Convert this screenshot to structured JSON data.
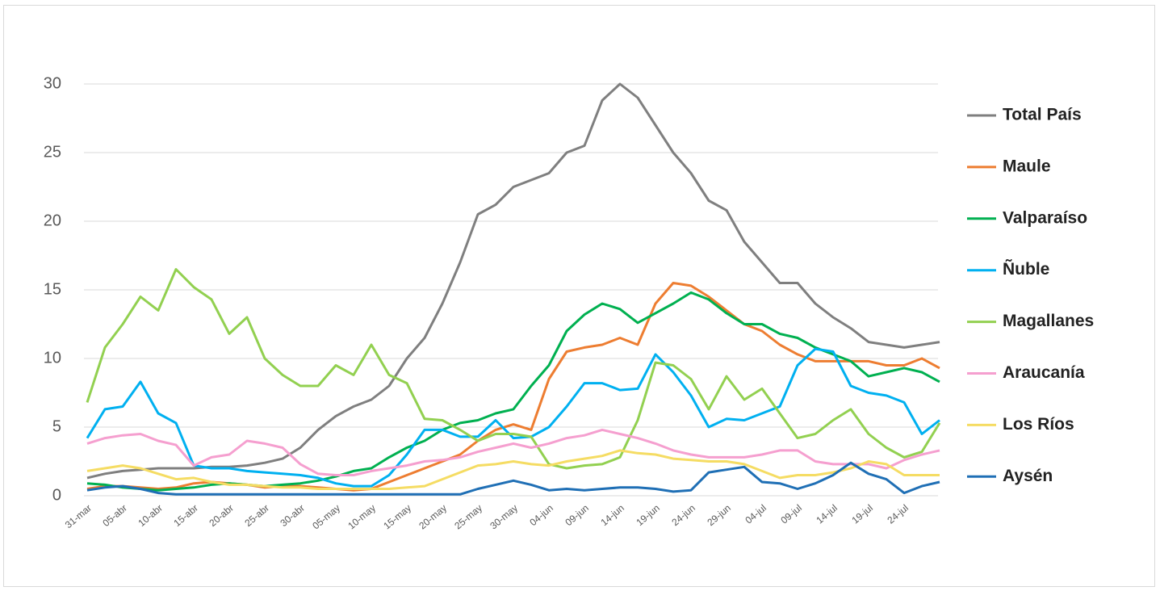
{
  "chart_data": {
    "type": "line",
    "categories": [
      "31-mar",
      null,
      "05-abr",
      null,
      "10-abr",
      null,
      "15-abr",
      null,
      "20-abr",
      null,
      "25-abr",
      null,
      "30-abr",
      null,
      "05-may",
      null,
      "10-may",
      null,
      "15-may",
      null,
      "20-may",
      null,
      "25-may",
      null,
      "30-may",
      null,
      "04-jun",
      null,
      "09-jun",
      null,
      "14-jun",
      null,
      "19-jun",
      null,
      "24-jun",
      null,
      "29-jun",
      null,
      "04-jul",
      null,
      "09-jul",
      null,
      "14-jul",
      null,
      "19-jul",
      null,
      "24-jul",
      null,
      null
    ],
    "ylim": [
      0,
      30
    ],
    "yticks": [
      0,
      5,
      10,
      15,
      20,
      25,
      30
    ],
    "grid": true,
    "legend": "right",
    "series": [
      {
        "name": "Total País",
        "color": "#7f7f7f",
        "values": [
          1.3,
          1.6,
          1.8,
          1.9,
          2.0,
          2.0,
          2.0,
          2.1,
          2.1,
          2.2,
          2.4,
          2.7,
          3.5,
          4.8,
          5.8,
          6.5,
          7.0,
          8.0,
          10.0,
          11.5,
          14.0,
          17.0,
          20.5,
          21.2,
          22.5,
          23.0,
          23.5,
          25.0,
          25.5,
          28.8,
          30.0,
          29.0,
          27.0,
          25.0,
          23.5,
          21.5,
          20.8,
          18.5,
          17.0,
          15.5,
          15.5,
          14.0,
          13.0,
          12.2,
          11.2,
          11.0,
          10.8,
          11.0,
          11.2
        ]
      },
      {
        "name": "Maule",
        "color": "#ed7d31",
        "values": [
          0.5,
          0.7,
          0.7,
          0.6,
          0.5,
          0.6,
          0.9,
          1.0,
          0.9,
          0.8,
          0.6,
          0.7,
          0.7,
          0.6,
          0.5,
          0.4,
          0.5,
          1.0,
          1.5,
          2.0,
          2.5,
          3.0,
          4.0,
          4.8,
          5.2,
          4.8,
          8.5,
          10.5,
          10.8,
          11.0,
          11.5,
          11.0,
          14.0,
          15.5,
          15.3,
          14.5,
          13.5,
          12.5,
          12.0,
          11.0,
          10.3,
          9.8,
          9.8,
          9.8,
          9.8,
          9.5,
          9.5,
          10.0,
          9.3
        ]
      },
      {
        "name": "Valparaíso",
        "color": "#00b050",
        "values": [
          0.9,
          0.8,
          0.6,
          0.5,
          0.4,
          0.5,
          0.6,
          0.8,
          0.9,
          0.8,
          0.7,
          0.8,
          0.9,
          1.1,
          1.4,
          1.8,
          2.0,
          2.8,
          3.5,
          4.0,
          4.8,
          5.3,
          5.5,
          6.0,
          6.3,
          8.0,
          9.5,
          12.0,
          13.2,
          14.0,
          13.6,
          12.6,
          13.3,
          14.0,
          14.8,
          14.3,
          13.3,
          12.5,
          12.5,
          11.8,
          11.5,
          10.8,
          10.3,
          9.8,
          8.7,
          9.0,
          9.3,
          9.0,
          8.3
        ]
      },
      {
        "name": "Ñuble",
        "color": "#00b0f0",
        "values": [
          4.2,
          6.3,
          6.5,
          8.3,
          6.0,
          5.3,
          2.2,
          2.0,
          2.0,
          1.8,
          1.7,
          1.6,
          1.5,
          1.3,
          0.9,
          0.7,
          0.7,
          1.5,
          3.0,
          4.8,
          4.8,
          4.3,
          4.3,
          5.5,
          4.2,
          4.3,
          5.0,
          6.5,
          8.2,
          8.2,
          7.7,
          7.8,
          10.3,
          9.0,
          7.3,
          5.0,
          5.6,
          5.5,
          6.0,
          6.5,
          9.5,
          10.7,
          10.5,
          8.0,
          7.5,
          7.3,
          6.8,
          4.5,
          5.5
        ]
      },
      {
        "name": "Magallanes",
        "color": "#92d050",
        "values": [
          6.8,
          10.8,
          12.5,
          14.5,
          13.5,
          16.5,
          15.2,
          14.3,
          11.8,
          13.0,
          10.0,
          8.8,
          8.0,
          8.0,
          9.5,
          8.8,
          11.0,
          8.8,
          8.2,
          5.6,
          5.5,
          4.8,
          4.0,
          4.5,
          4.5,
          4.3,
          2.3,
          2.0,
          2.2,
          2.3,
          2.8,
          5.5,
          9.7,
          9.5,
          8.5,
          6.3,
          8.7,
          7.0,
          7.8,
          6.0,
          4.2,
          4.5,
          5.5,
          6.3,
          4.5,
          3.5,
          2.8,
          3.2,
          5.3
        ]
      },
      {
        "name": "Araucanía",
        "color": "#f59fcf",
        "values": [
          3.8,
          4.2,
          4.4,
          4.5,
          4.0,
          3.7,
          2.2,
          2.8,
          3.0,
          4.0,
          3.8,
          3.5,
          2.3,
          1.6,
          1.5,
          1.5,
          1.8,
          2.0,
          2.2,
          2.5,
          2.6,
          2.8,
          3.2,
          3.5,
          3.8,
          3.5,
          3.8,
          4.2,
          4.4,
          4.8,
          4.5,
          4.2,
          3.8,
          3.3,
          3.0,
          2.8,
          2.8,
          2.8,
          3.0,
          3.3,
          3.3,
          2.5,
          2.3,
          2.3,
          2.3,
          2.0,
          2.6,
          3.0,
          3.3
        ]
      },
      {
        "name": "Los Ríos",
        "color": "#f5dc63",
        "values": [
          1.8,
          2.0,
          2.2,
          2.0,
          1.6,
          1.2,
          1.3,
          1.0,
          0.8,
          0.8,
          0.7,
          0.6,
          0.6,
          0.5,
          0.5,
          0.5,
          0.5,
          0.5,
          0.6,
          0.7,
          1.2,
          1.7,
          2.2,
          2.3,
          2.5,
          2.3,
          2.2,
          2.5,
          2.7,
          2.9,
          3.3,
          3.1,
          3.0,
          2.7,
          2.6,
          2.5,
          2.5,
          2.3,
          1.8,
          1.3,
          1.5,
          1.5,
          1.7,
          2.0,
          2.5,
          2.3,
          1.5,
          1.5,
          1.5
        ]
      },
      {
        "name": "Aysén",
        "color": "#1f6fb5",
        "values": [
          0.4,
          0.6,
          0.7,
          0.5,
          0.2,
          0.1,
          0.1,
          0.1,
          0.1,
          0.1,
          0.1,
          0.1,
          0.1,
          0.1,
          0.1,
          0.1,
          0.1,
          0.1,
          0.1,
          0.1,
          0.1,
          0.1,
          0.5,
          0.8,
          1.1,
          0.8,
          0.4,
          0.5,
          0.4,
          0.5,
          0.6,
          0.6,
          0.5,
          0.3,
          0.4,
          1.7,
          1.9,
          2.1,
          1.0,
          0.9,
          0.5,
          0.9,
          1.5,
          2.4,
          1.6,
          1.2,
          0.2,
          0.7,
          1.0
        ]
      }
    ]
  }
}
